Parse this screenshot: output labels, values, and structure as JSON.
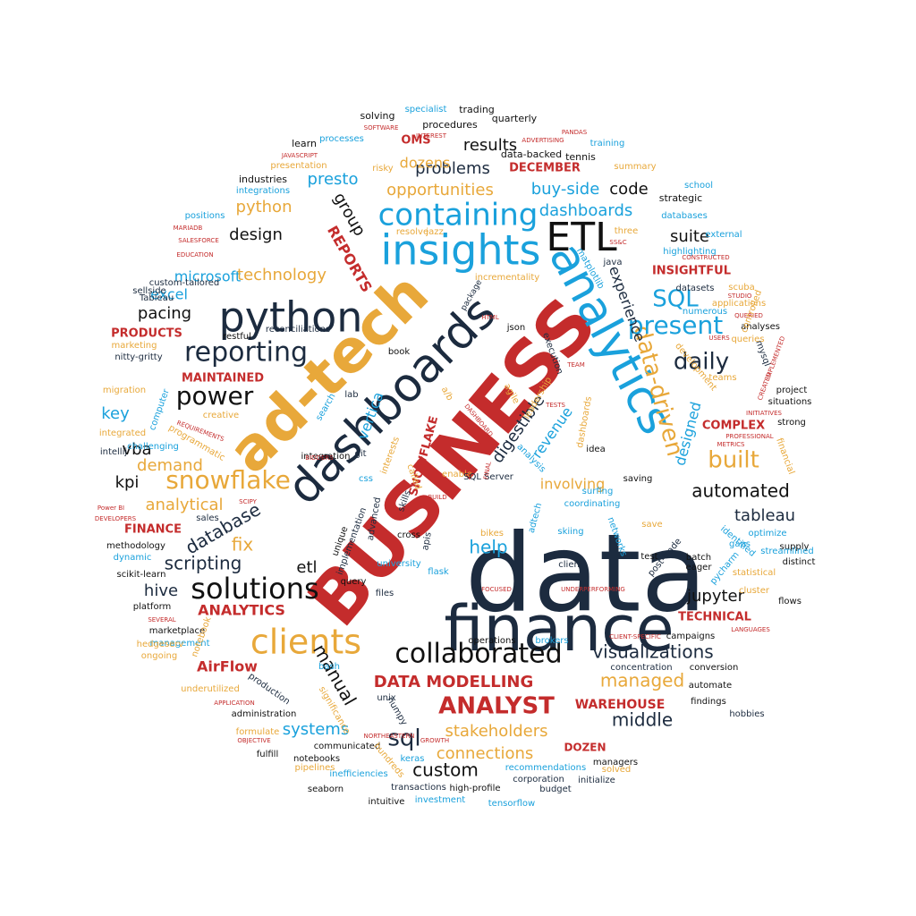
{
  "palette": {
    "navy": "#1c2b3f",
    "gold": "#e8a83a",
    "red": "#c42c2c",
    "blue": "#1aa1dc",
    "black": "#111111"
  },
  "words": [
    {
      "text": "data",
      "color": "navy"
    },
    {
      "text": "finance",
      "color": "navy"
    },
    {
      "text": "BUSINESS",
      "color": "red"
    },
    {
      "text": "ad-tech",
      "color": "gold"
    },
    {
      "text": "dashboards",
      "color": "navy"
    },
    {
      "text": "analytics",
      "color": "blue"
    },
    {
      "text": "python",
      "color": "navy"
    },
    {
      "text": "insights",
      "color": "blue"
    },
    {
      "text": "ETL",
      "color": "black"
    },
    {
      "text": "containing",
      "color": "blue"
    },
    {
      "text": "clients",
      "color": "gold"
    },
    {
      "text": "solutions",
      "color": "black"
    },
    {
      "text": "collaborated",
      "color": "black"
    },
    {
      "text": "reporting",
      "color": "navy"
    },
    {
      "text": "power",
      "color": "black"
    },
    {
      "text": "snowflake",
      "color": "gold"
    },
    {
      "text": "data-driven",
      "color": "gold"
    },
    {
      "text": "present",
      "color": "blue"
    },
    {
      "text": "daily",
      "color": "navy"
    },
    {
      "text": "SQL",
      "color": "blue"
    },
    {
      "text": "ANALYST",
      "color": "red"
    },
    {
      "text": "sql",
      "color": "navy"
    },
    {
      "text": "built",
      "color": "gold"
    },
    {
      "text": "visualizations",
      "color": "navy"
    },
    {
      "text": "DATA MODELLING",
      "color": "red"
    },
    {
      "text": "manual",
      "color": "black"
    },
    {
      "text": "stakeholders",
      "color": "gold"
    },
    {
      "text": "connections",
      "color": "gold"
    },
    {
      "text": "middle",
      "color": "navy"
    },
    {
      "text": "custom",
      "color": "black"
    },
    {
      "text": "managed",
      "color": "gold"
    },
    {
      "text": "automated",
      "color": "black"
    },
    {
      "text": "tableau",
      "color": "navy"
    },
    {
      "text": "jupyter",
      "color": "black"
    },
    {
      "text": "etl",
      "color": "black"
    },
    {
      "text": "hive",
      "color": "navy"
    },
    {
      "text": "scripting",
      "color": "navy"
    },
    {
      "text": "database",
      "color": "navy"
    },
    {
      "text": "analytical",
      "color": "gold"
    },
    {
      "text": "demand",
      "color": "gold"
    },
    {
      "text": "kpi",
      "color": "black"
    },
    {
      "text": "vba",
      "color": "black"
    },
    {
      "text": "key",
      "color": "blue"
    },
    {
      "text": "pacing",
      "color": "black"
    },
    {
      "text": "excel",
      "color": "blue"
    },
    {
      "text": "microsoft",
      "color": "blue"
    },
    {
      "text": "design",
      "color": "black"
    },
    {
      "text": "python",
      "color": "gold"
    },
    {
      "text": "technology",
      "color": "gold"
    },
    {
      "text": "REPORTS",
      "color": "red"
    },
    {
      "text": "group",
      "color": "black"
    },
    {
      "text": "presto",
      "color": "blue"
    },
    {
      "text": "problems",
      "color": "navy"
    },
    {
      "text": "opportunities",
      "color": "gold"
    },
    {
      "text": "buy-side",
      "color": "blue"
    },
    {
      "text": "code",
      "color": "black"
    },
    {
      "text": "dashboards",
      "color": "blue"
    },
    {
      "text": "suite",
      "color": "black"
    },
    {
      "text": "experience",
      "color": "navy"
    },
    {
      "text": "digestible",
      "color": "navy"
    },
    {
      "text": "revenue",
      "color": "blue"
    },
    {
      "text": "involving",
      "color": "gold"
    },
    {
      "text": "designed",
      "color": "blue"
    },
    {
      "text": "help",
      "color": "blue"
    },
    {
      "text": "fix",
      "color": "gold"
    },
    {
      "text": "ANALYTICS",
      "color": "red"
    },
    {
      "text": "systems",
      "color": "blue"
    },
    {
      "text": "results",
      "color": "black"
    },
    {
      "text": "dozens",
      "color": "gold"
    },
    {
      "text": "OMS",
      "color": "red"
    },
    {
      "text": "DECEMBER",
      "color": "red"
    },
    {
      "text": "vertica",
      "color": "blue"
    },
    {
      "text": "SNOWFLAKE",
      "color": "red"
    },
    {
      "text": "WAREHOUSE",
      "color": "red"
    },
    {
      "text": "DOZEN",
      "color": "red"
    },
    {
      "text": "COMPLEX",
      "color": "red"
    },
    {
      "text": "INSIGHTFUL",
      "color": "red"
    },
    {
      "text": "TECHNICAL",
      "color": "red"
    },
    {
      "text": "MAINTAINED",
      "color": "red"
    },
    {
      "text": "PRODUCTS",
      "color": "red"
    },
    {
      "text": "FINANCE",
      "color": "red"
    },
    {
      "text": "AirFlow",
      "color": "red"
    },
    {
      "text": "trading",
      "color": "black"
    },
    {
      "text": "solving",
      "color": "black"
    },
    {
      "text": "procedures",
      "color": "black"
    },
    {
      "text": "quarterly",
      "color": "black"
    },
    {
      "text": "specialist",
      "color": "blue"
    },
    {
      "text": "learn",
      "color": "black"
    },
    {
      "text": "processes",
      "color": "blue"
    },
    {
      "text": "data-backed",
      "color": "black"
    },
    {
      "text": "tennis",
      "color": "black"
    },
    {
      "text": "training",
      "color": "blue"
    },
    {
      "text": "presentation",
      "color": "gold"
    },
    {
      "text": "risky",
      "color": "gold"
    },
    {
      "text": "summary",
      "color": "gold"
    },
    {
      "text": "industries",
      "color": "black"
    },
    {
      "text": "integrations",
      "color": "blue"
    },
    {
      "text": "school",
      "color": "blue"
    },
    {
      "text": "strategic",
      "color": "black"
    },
    {
      "text": "positions",
      "color": "blue"
    },
    {
      "text": "databases",
      "color": "blue"
    },
    {
      "text": "resolve",
      "color": "gold"
    },
    {
      "text": "jazz",
      "color": "gold"
    },
    {
      "text": "three",
      "color": "gold"
    },
    {
      "text": "external",
      "color": "blue"
    },
    {
      "text": "highlighting",
      "color": "blue"
    },
    {
      "text": "java",
      "color": "navy"
    },
    {
      "text": "matplotlib",
      "color": "blue"
    },
    {
      "text": "incrementality",
      "color": "gold"
    },
    {
      "text": "package",
      "color": "navy"
    },
    {
      "text": "datasets",
      "color": "navy"
    },
    {
      "text": "scuba",
      "color": "gold"
    },
    {
      "text": "applications",
      "color": "gold"
    },
    {
      "text": "sellside",
      "color": "navy"
    },
    {
      "text": "custom-tailored",
      "color": "navy"
    },
    {
      "text": "Tableau",
      "color": "navy"
    },
    {
      "text": "json",
      "color": "black"
    },
    {
      "text": "analyses",
      "color": "black"
    },
    {
      "text": "restful",
      "color": "black"
    },
    {
      "text": "reconciliations",
      "color": "navy"
    },
    {
      "text": "marketing",
      "color": "gold"
    },
    {
      "text": "nitty-gritty",
      "color": "navy"
    },
    {
      "text": "book",
      "color": "black"
    },
    {
      "text": "execution",
      "color": "navy"
    },
    {
      "text": "mysql",
      "color": "navy"
    },
    {
      "text": "teams",
      "color": "gold"
    },
    {
      "text": "development",
      "color": "gold"
    },
    {
      "text": "project",
      "color": "black"
    },
    {
      "text": "situations",
      "color": "black"
    },
    {
      "text": "strong",
      "color": "black"
    },
    {
      "text": "migration",
      "color": "gold"
    },
    {
      "text": "lab",
      "color": "navy"
    },
    {
      "text": "search",
      "color": "blue"
    },
    {
      "text": "computer",
      "color": "blue"
    },
    {
      "text": "creative",
      "color": "gold"
    },
    {
      "text": "leadership",
      "color": "gold"
    },
    {
      "text": "agile",
      "color": "gold"
    },
    {
      "text": "a/b",
      "color": "gold"
    },
    {
      "text": "idea",
      "color": "black"
    },
    {
      "text": "integrated",
      "color": "gold"
    },
    {
      "text": "challenging",
      "color": "blue"
    },
    {
      "text": "programmatic",
      "color": "gold"
    },
    {
      "text": "intellij",
      "color": "navy"
    },
    {
      "text": "integration",
      "color": "black"
    },
    {
      "text": "interests",
      "color": "gold"
    },
    {
      "text": "git",
      "color": "navy"
    },
    {
      "text": "analysis",
      "color": "blue"
    },
    {
      "text": "saving",
      "color": "black"
    },
    {
      "text": "financial",
      "color": "gold"
    },
    {
      "text": "called",
      "color": "gold"
    },
    {
      "text": "enable",
      "color": "gold"
    },
    {
      "text": "css",
      "color": "blue"
    },
    {
      "text": "SQL Server",
      "color": "navy"
    },
    {
      "text": "surfing",
      "color": "blue"
    },
    {
      "text": "coordinating",
      "color": "blue"
    },
    {
      "text": "sales",
      "color": "navy"
    },
    {
      "text": "methodology",
      "color": "black"
    },
    {
      "text": "dynamic",
      "color": "blue"
    },
    {
      "text": "scikit-learn",
      "color": "black"
    },
    {
      "text": "skills",
      "color": "navy"
    },
    {
      "text": "advanced",
      "color": "navy"
    },
    {
      "text": "implementation",
      "color": "navy"
    },
    {
      "text": "cross",
      "color": "black"
    },
    {
      "text": "unique",
      "color": "black"
    },
    {
      "text": "apis",
      "color": "navy"
    },
    {
      "text": "bikes",
      "color": "gold"
    },
    {
      "text": "adtech",
      "color": "blue"
    },
    {
      "text": "skiing",
      "color": "blue"
    },
    {
      "text": "save",
      "color": "gold"
    },
    {
      "text": "post-trade",
      "color": "navy"
    },
    {
      "text": "networks",
      "color": "blue"
    },
    {
      "text": "test",
      "color": "black"
    },
    {
      "text": "batch",
      "color": "black"
    },
    {
      "text": "eager",
      "color": "black"
    },
    {
      "text": "identified",
      "color": "blue"
    },
    {
      "text": "gaps",
      "color": "blue"
    },
    {
      "text": "optimize",
      "color": "blue"
    },
    {
      "text": "supply",
      "color": "black"
    },
    {
      "text": "distinct",
      "color": "black"
    },
    {
      "text": "streamlined",
      "color": "blue"
    },
    {
      "text": "pycharm",
      "color": "blue"
    },
    {
      "text": "statistical",
      "color": "gold"
    },
    {
      "text": "cluster",
      "color": "gold"
    },
    {
      "text": "flows",
      "color": "black"
    },
    {
      "text": "university",
      "color": "blue"
    },
    {
      "text": "flask",
      "color": "blue"
    },
    {
      "text": "client",
      "color": "navy"
    },
    {
      "text": "query",
      "color": "black"
    },
    {
      "text": "files",
      "color": "navy"
    },
    {
      "text": "platform",
      "color": "black"
    },
    {
      "text": "marketplace",
      "color": "black"
    },
    {
      "text": "management",
      "color": "blue"
    },
    {
      "text": "hedgeserv",
      "color": "gold"
    },
    {
      "text": "notebook",
      "color": "gold"
    },
    {
      "text": "ongoing",
      "color": "gold"
    },
    {
      "text": "operations",
      "color": "black"
    },
    {
      "text": "brokers",
      "color": "blue"
    },
    {
      "text": "campaigns",
      "color": "black"
    },
    {
      "text": "bash",
      "color": "blue"
    },
    {
      "text": "concentration",
      "color": "navy"
    },
    {
      "text": "conversion",
      "color": "black"
    },
    {
      "text": "automate",
      "color": "black"
    },
    {
      "text": "underutilized",
      "color": "gold"
    },
    {
      "text": "production",
      "color": "navy"
    },
    {
      "text": "unix",
      "color": "navy"
    },
    {
      "text": "numpy",
      "color": "navy"
    },
    {
      "text": "significance",
      "color": "gold"
    },
    {
      "text": "findings",
      "color": "black"
    },
    {
      "text": "hobbies",
      "color": "navy"
    },
    {
      "text": "administration",
      "color": "black"
    },
    {
      "text": "formulate",
      "color": "gold"
    },
    {
      "text": "communicated",
      "color": "black"
    },
    {
      "text": "fulfill",
      "color": "black"
    },
    {
      "text": "notebooks",
      "color": "black"
    },
    {
      "text": "hundreds",
      "color": "gold"
    },
    {
      "text": "keras",
      "color": "blue"
    },
    {
      "text": "managers",
      "color": "black"
    },
    {
      "text": "pipelines",
      "color": "gold"
    },
    {
      "text": "inefficiencies",
      "color": "blue"
    },
    {
      "text": "recommendations",
      "color": "blue"
    },
    {
      "text": "solved",
      "color": "gold"
    },
    {
      "text": "seaborn",
      "color": "black"
    },
    {
      "text": "transactions",
      "color": "navy"
    },
    {
      "text": "high-profile",
      "color": "black"
    },
    {
      "text": "corporation",
      "color": "navy"
    },
    {
      "text": "initialize",
      "color": "navy"
    },
    {
      "text": "budget",
      "color": "navy"
    },
    {
      "text": "intuitive",
      "color": "black"
    },
    {
      "text": "investment",
      "color": "blue"
    },
    {
      "text": "tensorflow",
      "color": "blue"
    },
    {
      "text": "SOFTWARE",
      "color": "red"
    },
    {
      "text": "INTEREST",
      "color": "red"
    },
    {
      "text": "PANDAS",
      "color": "red"
    },
    {
      "text": "ADVERTISING",
      "color": "red"
    },
    {
      "text": "JAVASCRIPT",
      "color": "red"
    },
    {
      "text": "MARIADB",
      "color": "red"
    },
    {
      "text": "SALESFORCE",
      "color": "red"
    },
    {
      "text": "EDUCATION",
      "color": "red"
    },
    {
      "text": "SS&C",
      "color": "red"
    },
    {
      "text": "CONSTRUCTED",
      "color": "red"
    },
    {
      "text": "HTML",
      "color": "red"
    },
    {
      "text": "QUERIED",
      "color": "red"
    },
    {
      "text": "STUDIO",
      "color": "red"
    },
    {
      "text": "USERS",
      "color": "red"
    },
    {
      "text": "TEAM",
      "color": "red"
    },
    {
      "text": "IMPLEMENTED",
      "color": "red"
    },
    {
      "text": "CREATED",
      "color": "red"
    },
    {
      "text": "TESTS",
      "color": "red"
    },
    {
      "text": "INITIATIVES",
      "color": "red"
    },
    {
      "text": "DASHBOARD",
      "color": "red"
    },
    {
      "text": "REQUIREMENTS",
      "color": "red"
    },
    {
      "text": "PROFESSIONAL",
      "color": "red"
    },
    {
      "text": "METRICS",
      "color": "red"
    },
    {
      "text": "BIDDERS",
      "color": "red"
    },
    {
      "text": "FINAL",
      "color": "red"
    },
    {
      "text": "BUILD",
      "color": "red"
    },
    {
      "text": "SCIPY",
      "color": "red"
    },
    {
      "text": "Power BI",
      "color": "red"
    },
    {
      "text": "DEVELOPERS",
      "color": "red"
    },
    {
      "text": "FOCUSED",
      "color": "red"
    },
    {
      "text": "UNDERPERFORMING",
      "color": "red"
    },
    {
      "text": "SEVERAL",
      "color": "red"
    },
    {
      "text": "CLIENT-SPECIFIC",
      "color": "red"
    },
    {
      "text": "LANGUAGES",
      "color": "red"
    },
    {
      "text": "APPLICATION",
      "color": "red"
    },
    {
      "text": "OBJECTIVE",
      "color": "red"
    },
    {
      "text": "NORTHEASTERN",
      "color": "red"
    },
    {
      "text": "GROWTH",
      "color": "red"
    },
    {
      "text": "numerous",
      "color": "blue"
    },
    {
      "text": "controlled",
      "color": "gold"
    },
    {
      "text": "queries",
      "color": "gold"
    },
    {
      "text": "dashboards",
      "color": "gold"
    }
  ]
}
